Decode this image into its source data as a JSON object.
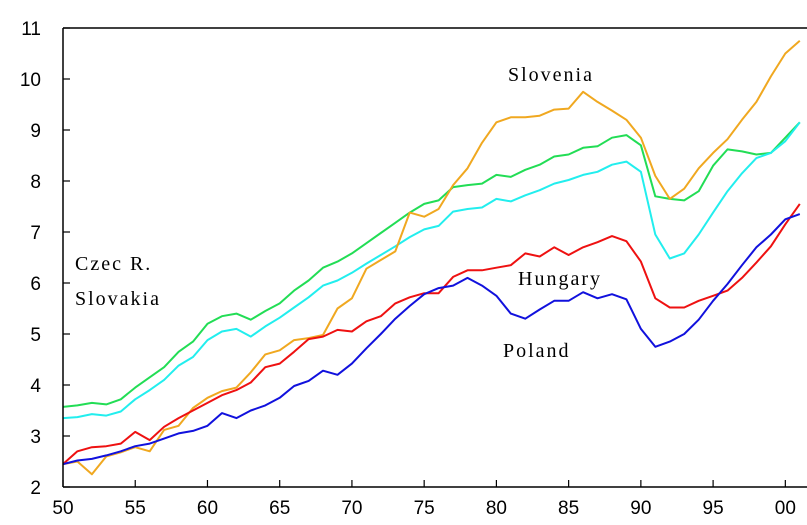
{
  "chart_data": {
    "type": "line",
    "x": [
      1950,
      1951,
      1952,
      1953,
      1954,
      1955,
      1956,
      1957,
      1958,
      1959,
      1960,
      1961,
      1962,
      1963,
      1964,
      1965,
      1966,
      1967,
      1968,
      1969,
      1970,
      1971,
      1972,
      1973,
      1974,
      1975,
      1976,
      1977,
      1978,
      1979,
      1980,
      1981,
      1982,
      1983,
      1984,
      1985,
      1986,
      1987,
      1988,
      1989,
      1990,
      1991,
      1992,
      1993,
      1994,
      1995,
      1996,
      1997,
      1998,
      1999,
      2000,
      2001
    ],
    "series": [
      {
        "name": "Czec R.",
        "color": "#22dd55",
        "values": [
          3.57,
          3.6,
          3.65,
          3.62,
          3.72,
          3.95,
          4.15,
          4.35,
          4.65,
          4.85,
          5.2,
          5.35,
          5.4,
          5.28,
          5.45,
          5.6,
          5.85,
          6.05,
          6.3,
          6.42,
          6.58,
          6.78,
          6.98,
          7.18,
          7.38,
          7.55,
          7.62,
          7.88,
          7.92,
          7.95,
          8.12,
          8.08,
          8.22,
          8.32,
          8.48,
          8.52,
          8.65,
          8.68,
          8.85,
          8.9,
          8.7,
          7.7,
          7.65,
          7.62,
          7.8,
          8.3,
          8.62,
          8.58,
          8.52,
          8.55,
          8.85,
          9.15
        ]
      },
      {
        "name": "Slovakia",
        "color": "#22eeee",
        "values": [
          3.35,
          3.37,
          3.43,
          3.4,
          3.48,
          3.72,
          3.9,
          4.1,
          4.38,
          4.55,
          4.88,
          5.05,
          5.1,
          4.95,
          5.15,
          5.32,
          5.52,
          5.72,
          5.95,
          6.05,
          6.2,
          6.38,
          6.55,
          6.72,
          6.9,
          7.05,
          7.12,
          7.4,
          7.45,
          7.48,
          7.65,
          7.6,
          7.72,
          7.82,
          7.95,
          8.02,
          8.12,
          8.18,
          8.32,
          8.38,
          8.18,
          6.95,
          6.48,
          6.58,
          6.95,
          7.38,
          7.8,
          8.15,
          8.45,
          8.55,
          8.78,
          9.15
        ]
      },
      {
        "name": "Slovenia",
        "color": "#f0a820",
        "values": [
          2.45,
          2.5,
          2.25,
          2.6,
          2.68,
          2.78,
          2.7,
          3.12,
          3.2,
          3.55,
          3.75,
          3.88,
          3.95,
          4.25,
          4.6,
          4.68,
          4.88,
          4.92,
          4.98,
          5.5,
          5.7,
          6.28,
          6.45,
          6.62,
          7.38,
          7.3,
          7.45,
          7.92,
          8.25,
          8.75,
          9.15,
          9.25,
          9.25,
          9.28,
          9.4,
          9.42,
          9.75,
          9.55,
          9.38,
          9.2,
          8.85,
          8.1,
          7.65,
          7.85,
          8.25,
          8.55,
          8.82,
          9.2,
          9.55,
          10.05,
          10.5,
          10.75
        ]
      },
      {
        "name": "Hungary",
        "color": "#ee1111",
        "values": [
          2.45,
          2.7,
          2.78,
          2.8,
          2.85,
          3.08,
          2.92,
          3.18,
          3.35,
          3.5,
          3.65,
          3.8,
          3.9,
          4.05,
          4.35,
          4.42,
          4.65,
          4.9,
          4.95,
          5.08,
          5.05,
          5.25,
          5.35,
          5.6,
          5.72,
          5.8,
          5.8,
          6.12,
          6.25,
          6.25,
          6.3,
          6.35,
          6.58,
          6.52,
          6.7,
          6.55,
          6.7,
          6.8,
          6.92,
          6.82,
          6.42,
          5.7,
          5.52,
          5.52,
          5.65,
          5.75,
          5.85,
          6.1,
          6.4,
          6.72,
          7.15,
          7.55
        ]
      },
      {
        "name": "Poland",
        "color": "#1111dd",
        "values": [
          2.45,
          2.52,
          2.55,
          2.62,
          2.7,
          2.8,
          2.85,
          2.95,
          3.05,
          3.1,
          3.2,
          3.45,
          3.35,
          3.5,
          3.6,
          3.75,
          3.98,
          4.08,
          4.28,
          4.2,
          4.42,
          4.72,
          5.0,
          5.3,
          5.55,
          5.78,
          5.9,
          5.95,
          6.1,
          5.95,
          5.75,
          5.4,
          5.3,
          5.48,
          5.65,
          5.65,
          5.82,
          5.7,
          5.78,
          5.68,
          5.1,
          4.75,
          4.85,
          5.0,
          5.28,
          5.65,
          5.98,
          6.35,
          6.7,
          6.95,
          7.25,
          7.35
        ]
      }
    ],
    "xlim": [
      1950,
      2001.5
    ],
    "xticks": [
      {
        "value": 1950,
        "label": "50"
      },
      {
        "value": 1955,
        "label": "55"
      },
      {
        "value": 1960,
        "label": "60"
      },
      {
        "value": 1965,
        "label": "65"
      },
      {
        "value": 1970,
        "label": "70"
      },
      {
        "value": 1975,
        "label": "75"
      },
      {
        "value": 1980,
        "label": "80"
      },
      {
        "value": 1985,
        "label": "85"
      },
      {
        "value": 1990,
        "label": "90"
      },
      {
        "value": 1995,
        "label": "95"
      },
      {
        "value": 2000,
        "label": "00"
      }
    ],
    "ylim": [
      2,
      11
    ],
    "yticks": [
      2,
      3,
      4,
      5,
      6,
      7,
      8,
      9,
      10,
      11
    ]
  }
}
